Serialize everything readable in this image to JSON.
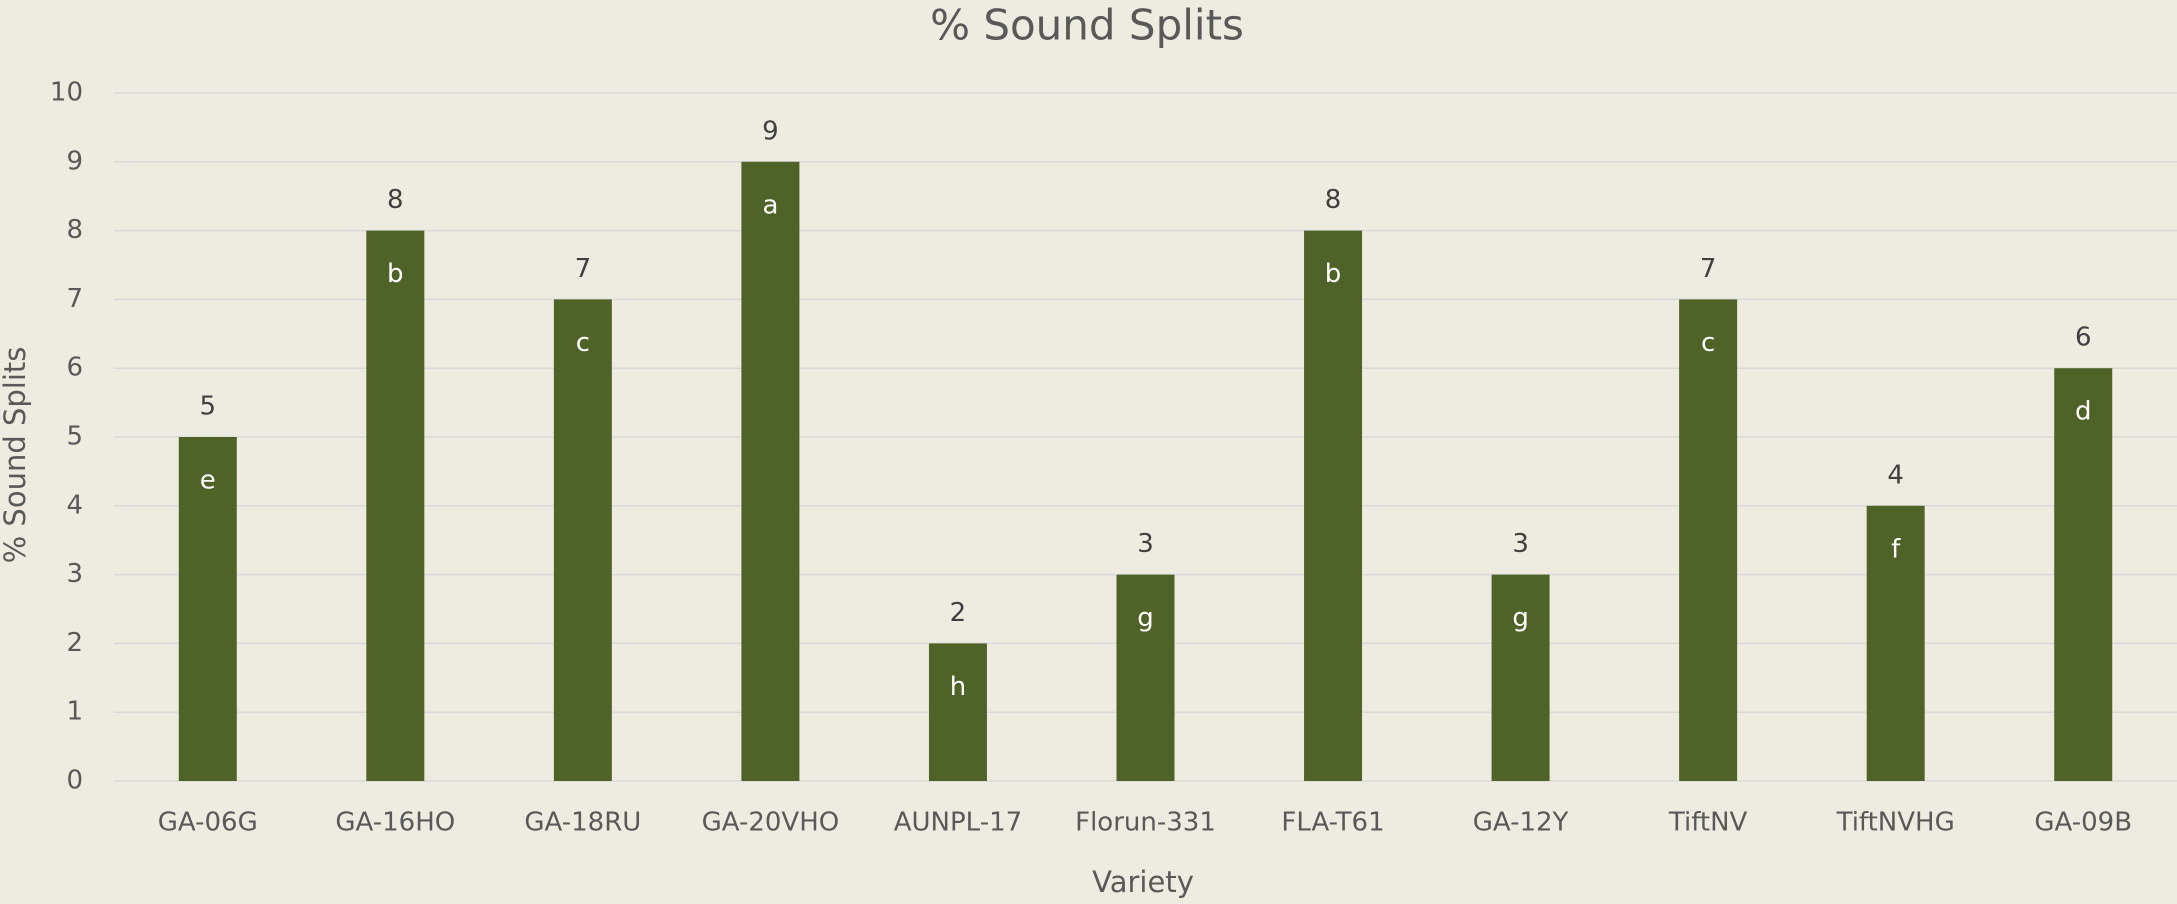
{
  "chart_data": {
    "type": "bar",
    "title": "% Sound Splits",
    "x_label": "Variety",
    "y_label": "% Sound Splits",
    "categories": [
      "GA-06G",
      "GA-16HO",
      "GA-18RU",
      "GA-20VHO",
      "AUNPL-17",
      "Florun-331",
      "FLA-T61",
      "GA-12Y",
      "TiftNV",
      "TiftNVHG",
      "GA-09B"
    ],
    "values": [
      5,
      8,
      7,
      9,
      2,
      3,
      8,
      3,
      7,
      4,
      6
    ],
    "annotations": [
      "e",
      "b",
      "c",
      "a",
      "h",
      "g",
      "b",
      "g",
      "c",
      "f",
      "d"
    ],
    "color": "#4f6228",
    "ylim": [
      0,
      10
    ],
    "yticks": [
      0,
      1,
      2,
      3,
      4,
      5,
      6,
      7,
      8,
      9,
      10
    ],
    "grid": true
  }
}
